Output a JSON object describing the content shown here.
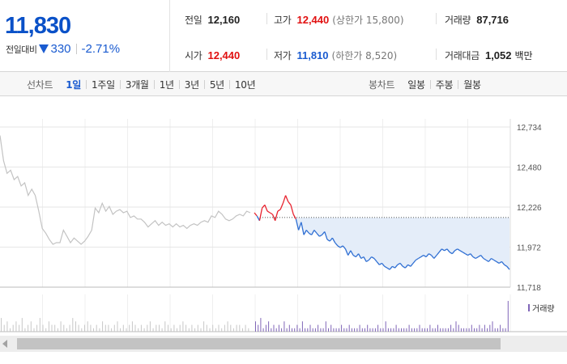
{
  "summary": {
    "current_price": "11,830",
    "change_label": "전일대비",
    "change_icon": "down-triangle-icon",
    "change_amount": "330",
    "change_percent": "-2.71%",
    "prev_close": {
      "label": "전일",
      "value": "12,160"
    },
    "open": {
      "label": "시가",
      "value": "12,440"
    },
    "high": {
      "label": "고가",
      "value": "12,440",
      "limit_text": "(상한가 15,800)"
    },
    "low": {
      "label": "저가",
      "value": "11,810",
      "limit_text": "(하한가 8,520)"
    },
    "volume": {
      "label": "거래량",
      "value": "87,716"
    },
    "trade_value": {
      "label": "거래대금",
      "value": "1,052",
      "unit": "백만"
    },
    "colors": {
      "up": "#e11111",
      "down": "#1a5bd0",
      "neutral": "#222222"
    }
  },
  "line_chart_tabs": {
    "title": "선차트",
    "items": [
      "1일",
      "1주일",
      "3개월",
      "1년",
      "3년",
      "5년",
      "10년"
    ],
    "active": "1일"
  },
  "candle_chart_tabs": {
    "title": "봉차트",
    "items": [
      "일봉",
      "주봉",
      "월봉"
    ]
  },
  "chart_data": {
    "type": "line",
    "ylim": [
      11718,
      12734
    ],
    "y_ticks": [
      "12,734",
      "12,480",
      "12,226",
      "11,972",
      "11,718"
    ],
    "y_tick_values": [
      12734,
      12480,
      12226,
      11972,
      11718
    ],
    "reference_price": 12160,
    "colors": {
      "before_session": "#c3c3c3",
      "above_reference": "#e8232f",
      "below_reference": "#2f6fd3",
      "below_fill": "#e4edf9",
      "volume_before": "#c8c8c8",
      "volume_session": "#8066b8"
    },
    "series": [
      {
        "values": [
          12680,
          12520,
          12440,
          12460,
          12400,
          12420,
          12360,
          12380,
          12300,
          12340,
          12300,
          12200,
          12090,
          12060,
          12020,
          11990,
          12000,
          12000,
          12080,
          12040,
          12000,
          12030,
          12010,
          11990,
          12010,
          12040,
          12080,
          12220,
          12190,
          12250,
          12200,
          12230,
          12180,
          12200,
          12210,
          12190,
          12200,
          12160,
          12170,
          12150,
          12150,
          12130,
          12100,
          12120,
          12140,
          12110,
          12130,
          12110,
          12120,
          12100,
          12120,
          12100,
          12110,
          12090,
          12110,
          12120,
          12110,
          12130,
          12140,
          12130,
          12170,
          12160,
          12200,
          12180,
          12150,
          12140,
          12150,
          12170,
          12180,
          12170,
          12200,
          12190
        ]
      },
      {
        "values": [
          12190,
          12170,
          12140,
          12220,
          12240,
          12200,
          12190,
          12180,
          12140,
          12200,
          12210,
          12250,
          12300,
          12260,
          12240,
          12180,
          12150,
          12080,
          12130,
          12050,
          12080,
          12060,
          12050,
          12080,
          12060,
          12040,
          12050,
          12070,
          12020,
          12010,
          12030,
          12000,
          11980,
          11970,
          11980,
          11960,
          11920,
          11950,
          11920,
          11910,
          11930,
          11900,
          11910,
          11880,
          11890,
          11910,
          11900,
          11880,
          11860,
          11870,
          11850,
          11840,
          11830,
          11850,
          11840,
          11860,
          11870,
          11850,
          11840,
          11860,
          11850,
          11870,
          11890,
          11900,
          11910,
          11920,
          11910,
          11930,
          11920,
          11900,
          11920,
          11940,
          11960,
          11950,
          11960,
          11940,
          11930,
          11950,
          11960,
          11950,
          11940,
          11930,
          11920,
          11930,
          11910,
          11900,
          11910,
          11920,
          11900,
          11890,
          11880,
          11900,
          11890,
          11880,
          11870,
          11880,
          11860,
          11850,
          11830
        ]
      }
    ],
    "volume": [
      {
        "values": [
          4,
          2,
          3,
          1,
          2,
          3,
          2,
          4,
          1,
          2,
          3,
          1,
          2,
          4,
          2,
          1,
          3,
          2,
          2,
          1,
          3,
          2,
          1,
          2,
          4,
          3,
          2,
          1,
          2,
          3,
          2,
          1,
          2,
          1,
          3,
          2,
          2,
          1,
          2,
          3,
          1,
          2,
          1,
          2,
          3,
          2,
          1,
          2,
          1,
          2,
          3,
          1,
          2,
          2,
          1,
          3,
          2,
          1,
          2,
          1,
          2,
          3,
          2,
          1,
          2,
          1,
          2,
          1,
          3,
          2,
          1,
          2,
          1,
          2,
          1,
          2,
          3,
          2,
          1,
          2,
          2,
          1,
          2,
          1
        ]
      },
      {
        "values": [
          3,
          2,
          4,
          1,
          2,
          3,
          1,
          2,
          1,
          2,
          1,
          3,
          1,
          2,
          1,
          1,
          2,
          1,
          3,
          1,
          1,
          2,
          1,
          1,
          2,
          1,
          1,
          3,
          1,
          2,
          1,
          1,
          1,
          2,
          1,
          1,
          2,
          1,
          1,
          1,
          2,
          1,
          1,
          2,
          1,
          1,
          1,
          2,
          1,
          1,
          3,
          1,
          1,
          1,
          2,
          1,
          1,
          1,
          1,
          2,
          1,
          1,
          1,
          2,
          1,
          1,
          1,
          2,
          1,
          1,
          2,
          1,
          1,
          1,
          1,
          2,
          1,
          3,
          2,
          1,
          1,
          1,
          1,
          2,
          1,
          1,
          2,
          1,
          2,
          1,
          2,
          3,
          1,
          1,
          2,
          1,
          1,
          9
        ]
      }
    ],
    "volume_legend": "거래량"
  }
}
